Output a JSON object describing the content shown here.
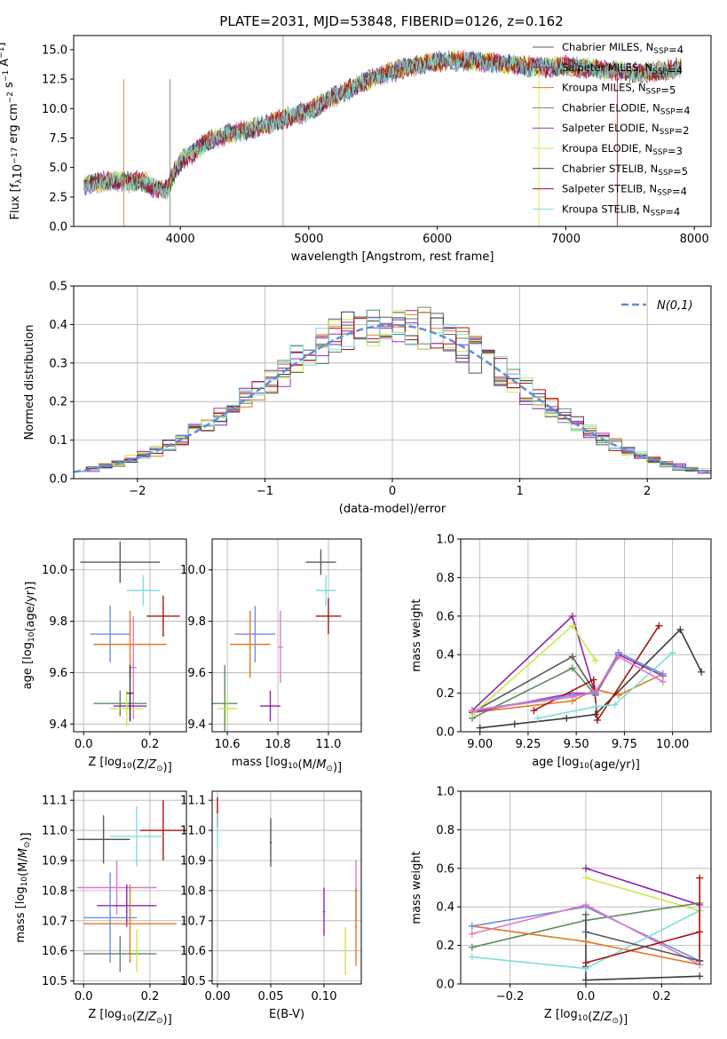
{
  "figure_title": "PLATE=2031, MJD=53848, FIBERID=0126, z=0.162",
  "palette": [
    "#5a5a5a",
    "#8e24aa",
    "#e07b1f",
    "#5f8a5f",
    "#9b30c6",
    "#c9ea4a",
    "#3a3a3a",
    "#aa1111",
    "#7fdede",
    "#6a8fe0",
    "#e377c2",
    "#8c8c8c"
  ],
  "chart_data": [
    {
      "id": "spectrum",
      "type": "line",
      "title": "PLATE=2031, MJD=53848, FIBERID=0126, z=0.162",
      "xlabel": "wavelength [Angstrom, rest frame]",
      "ylabel": "Flux [f_λ10^-17 erg cm^-2 s^-1 A^-1]",
      "xlim": [
        3170,
        8130
      ],
      "ylim": [
        0,
        16.2
      ],
      "xticks": [
        4000,
        5000,
        6000,
        7000,
        8000
      ],
      "yticks": [
        0.0,
        2.5,
        5.0,
        7.5,
        10.0,
        12.5,
        15.0
      ],
      "ytick_labels": [
        "0.0",
        "2.5",
        "5.0",
        "7.5",
        "10.0",
        "12.5",
        "15.0"
      ],
      "grid": false,
      "legend_position": "right",
      "continuum": [
        [
          3250,
          3.5
        ],
        [
          3450,
          3.9
        ],
        [
          3600,
          3.7
        ],
        [
          3700,
          3.9
        ],
        [
          3800,
          3.2
        ],
        [
          3900,
          3.2
        ],
        [
          3950,
          4.5
        ],
        [
          4000,
          5.5
        ],
        [
          4100,
          6.2
        ],
        [
          4200,
          7.2
        ],
        [
          4400,
          7.9
        ],
        [
          4600,
          8.4
        ],
        [
          4800,
          9.1
        ],
        [
          5000,
          9.8
        ],
        [
          5200,
          11.0
        ],
        [
          5400,
          12.1
        ],
        [
          5600,
          13.0
        ],
        [
          5800,
          13.6
        ],
        [
          6000,
          14.0
        ],
        [
          6200,
          14.1
        ],
        [
          6400,
          13.9
        ],
        [
          6600,
          13.7
        ],
        [
          6800,
          13.5
        ],
        [
          7000,
          13.6
        ],
        [
          7200,
          13.4
        ],
        [
          7400,
          13.2
        ],
        [
          7600,
          13.0
        ],
        [
          7800,
          13.3
        ],
        [
          7900,
          13.5
        ]
      ],
      "series": [
        {
          "name": "Chabrier MILES, N_SSP=4",
          "color": "#5a5a5a"
        },
        {
          "name": "Salpeter MILES, N_SSP=4",
          "color": "#8e24aa"
        },
        {
          "name": "Kroupa MILES, N_SSP=5",
          "color": "#e07b1f"
        },
        {
          "name": "Chabrier ELODIE, N_SSP=4",
          "color": "#5f8a5f"
        },
        {
          "name": "Salpeter ELODIE, N_SSP=2",
          "color": "#9b30c6"
        },
        {
          "name": "Kroupa ELODIE, N_SSP=3",
          "color": "#c9ea4a"
        },
        {
          "name": "Chabrier STELIB, N_SSP=5",
          "color": "#3a3a3a"
        },
        {
          "name": "Salpeter STELIB, N_SSP=4",
          "color": "#aa1111"
        },
        {
          "name": "Kroupa STELIB, N_SSP=4",
          "color": "#7fdede"
        }
      ]
    },
    {
      "id": "residuals",
      "type": "histogram",
      "xlabel": "(data-model)/error",
      "ylabel": "Normed distribution",
      "xlim": [
        -2.5,
        2.5
      ],
      "ylim": [
        0,
        0.5
      ],
      "xticks": [
        -2,
        -1,
        0,
        1,
        2
      ],
      "xtick_labels": [
        "−2",
        "−1",
        "0",
        "1",
        "2"
      ],
      "yticks": [
        0.0,
        0.1,
        0.2,
        0.3,
        0.4,
        0.5
      ],
      "ytick_labels": [
        "0.0",
        "0.1",
        "0.2",
        "0.3",
        "0.4",
        "0.5"
      ],
      "grid": true,
      "legend": "N(0,1)",
      "legend_position": "top-right",
      "bin_width": 0.1,
      "colors": [
        "#5a5a5a",
        "#8e24aa",
        "#e07b1f",
        "#5f8a5f",
        "#9b30c6",
        "#c9ea4a",
        "#3a3a3a",
        "#aa1111",
        "#7fdede"
      ],
      "reference_curve": {
        "name": "N(0,1)",
        "mean": 0,
        "sigma": 1,
        "color": "#5b8fd6"
      }
    },
    {
      "id": "age_vs_Z",
      "type": "errorbar",
      "xlabel": "Z [log10(Z/Z⊙)]",
      "ylabel": "age [log10(age/yr)]",
      "xlim": [
        -0.03,
        0.31
      ],
      "ylim": [
        9.37,
        10.12
      ],
      "xticks": [
        0.0,
        0.2
      ],
      "xtick_labels": [
        "0.0",
        "0.2"
      ],
      "yticks": [
        9.4,
        9.6,
        9.8,
        10.0
      ],
      "ytick_labels": [
        "9.4",
        "9.6",
        "9.8",
        "10.0"
      ],
      "grid": true,
      "points": [
        {
          "x": 0.11,
          "y": 10.03,
          "xerr": 0.12,
          "yerr": 0.08,
          "color": "#5a5a5a"
        },
        {
          "x": 0.18,
          "y": 9.92,
          "xerr": 0.05,
          "yerr": 0.06,
          "color": "#7fdede"
        },
        {
          "x": 0.24,
          "y": 9.82,
          "xerr": 0.05,
          "yerr": 0.08,
          "color": "#aa1111"
        },
        {
          "x": 0.08,
          "y": 9.75,
          "xerr": 0.06,
          "yerr": 0.11,
          "color": "#6a8fe0"
        },
        {
          "x": 0.14,
          "y": 9.71,
          "xerr": 0.11,
          "yerr": 0.13,
          "color": "#e07b1f"
        },
        {
          "x": 0.15,
          "y": 9.62,
          "xerr": 0.01,
          "yerr": 0.2,
          "color": "#e377c2"
        },
        {
          "x": 0.11,
          "y": 9.48,
          "xerr": 0.08,
          "yerr": 0.05,
          "color": "#5f8a5f"
        },
        {
          "x": 0.14,
          "y": 9.47,
          "xerr": 0.05,
          "yerr": 0.05,
          "color": "#8e24aa"
        },
        {
          "x": 0.13,
          "y": 9.46,
          "xerr": 0.05,
          "yerr": 0.07,
          "color": "#c9ea4a"
        },
        {
          "x": 0.14,
          "y": 9.52,
          "xerr": 0.01,
          "yerr": 0.11,
          "color": "#3a3a3a"
        }
      ]
    },
    {
      "id": "age_vs_mass",
      "type": "errorbar",
      "xlabel": "mass [log10(M/M⊙)]",
      "ylabel": "",
      "xlim": [
        10.54,
        11.13
      ],
      "ylim": [
        9.37,
        10.12
      ],
      "xticks": [
        10.6,
        10.8,
        11.0
      ],
      "xtick_labels": [
        "10.6",
        "10.8",
        "11.0"
      ],
      "yticks": [
        9.4,
        9.6,
        9.8,
        10.0
      ],
      "ytick_labels": [
        "9.4",
        "9.6",
        "9.8",
        "10.0"
      ],
      "grid": true,
      "points": [
        {
          "x": 10.97,
          "y": 10.03,
          "xerr": 0.06,
          "yerr": 0.05,
          "color": "#5a5a5a"
        },
        {
          "x": 10.99,
          "y": 9.92,
          "xerr": 0.04,
          "yerr": 0.06,
          "color": "#7fdede"
        },
        {
          "x": 11.0,
          "y": 9.82,
          "xerr": 0.05,
          "yerr": 0.07,
          "color": "#aa1111"
        },
        {
          "x": 10.71,
          "y": 9.75,
          "xerr": 0.08,
          "yerr": 0.11,
          "color": "#6a8fe0"
        },
        {
          "x": 10.69,
          "y": 9.71,
          "xerr": 0.08,
          "yerr": 0.13,
          "color": "#e07b1f"
        },
        {
          "x": 10.81,
          "y": 9.7,
          "xerr": 0.01,
          "yerr": 0.14,
          "color": "#e377c2"
        },
        {
          "x": 10.59,
          "y": 9.48,
          "xerr": 0.05,
          "yerr": 0.15,
          "color": "#5f8a5f"
        },
        {
          "x": 10.77,
          "y": 9.47,
          "xerr": 0.04,
          "yerr": 0.06,
          "color": "#8e24aa"
        },
        {
          "x": 10.6,
          "y": 9.46,
          "xerr": 0.04,
          "yerr": 0.06,
          "color": "#c9ea4a"
        }
      ]
    },
    {
      "id": "weight_vs_age",
      "type": "line",
      "xlabel": "age [log10(age/yr)]",
      "ylabel": "mass weight",
      "xlim": [
        8.9,
        10.2
      ],
      "ylim": [
        0,
        1.0
      ],
      "xticks": [
        9.0,
        9.25,
        9.5,
        9.75,
        10.0
      ],
      "xtick_labels": [
        "9.00",
        "9.25",
        "9.50",
        "9.75",
        "10.00"
      ],
      "yticks": [
        0.0,
        0.2,
        0.4,
        0.6,
        0.8,
        1.0
      ],
      "ytick_labels": [
        "0.0",
        "0.2",
        "0.4",
        "0.6",
        "0.8",
        "1.0"
      ],
      "grid": true,
      "series": [
        {
          "color": "#5a5a5a",
          "x": [
            8.96,
            9.48,
            9.6,
            9.72
          ],
          "y": [
            0.1,
            0.39,
            0.2,
            0.39
          ]
        },
        {
          "color": "#8e24aa",
          "x": [
            8.96,
            9.48,
            9.6,
            9.72,
            9.95
          ],
          "y": [
            0.11,
            0.6,
            0.19,
            0.4,
            0.29
          ]
        },
        {
          "color": "#e07b1f",
          "x": [
            8.96,
            9.48,
            9.6,
            9.72,
            9.95
          ],
          "y": [
            0.1,
            0.16,
            0.22,
            0.19,
            0.3
          ]
        },
        {
          "color": "#5f8a5f",
          "x": [
            8.96,
            9.48,
            9.6,
            9.72
          ],
          "y": [
            0.07,
            0.33,
            0.19,
            0.41
          ]
        },
        {
          "color": "#9b30c6",
          "x": [
            8.96,
            9.48,
            9.6,
            9.72
          ],
          "y": [
            0.1,
            0.2,
            0.2,
            0.41
          ]
        },
        {
          "color": "#c9ea4a",
          "x": [
            8.96,
            9.48,
            9.6
          ],
          "y": [
            0.09,
            0.55,
            0.37
          ]
        },
        {
          "color": "#3a3a3a",
          "x": [
            9.0,
            9.18,
            9.45,
            9.6,
            10.04,
            10.15
          ],
          "y": [
            0.02,
            0.04,
            0.07,
            0.09,
            0.53,
            0.31
          ]
        },
        {
          "color": "#aa1111",
          "x": [
            9.28,
            9.59,
            9.61,
            9.93
          ],
          "y": [
            0.11,
            0.27,
            0.06,
            0.55
          ]
        },
        {
          "color": "#7fdede",
          "x": [
            9.3,
            9.6,
            9.7,
            10.0
          ],
          "y": [
            0.07,
            0.13,
            0.14,
            0.41
          ]
        },
        {
          "color": "#6a8fe0",
          "x": [
            8.96,
            9.48,
            9.6,
            9.72,
            9.95
          ],
          "y": [
            0.11,
            0.19,
            0.2,
            0.41,
            0.3
          ]
        },
        {
          "color": "#e377c2",
          "x": [
            8.96,
            9.48,
            9.6,
            9.72,
            9.95
          ],
          "y": [
            0.11,
            0.18,
            0.21,
            0.39,
            0.26
          ]
        }
      ]
    },
    {
      "id": "mass_vs_Z",
      "type": "errorbar",
      "xlabel": "Z [log10(Z/Z⊙)]",
      "ylabel": "mass [log10(M/M⊙)]",
      "xlim": [
        -0.03,
        0.31
      ],
      "ylim": [
        10.49,
        11.13
      ],
      "xticks": [
        0.0,
        0.2
      ],
      "xtick_labels": [
        "0.0",
        "0.2"
      ],
      "yticks": [
        10.5,
        10.6,
        10.7,
        10.8,
        10.9,
        11.0,
        11.1
      ],
      "ytick_labels": [
        "10.5",
        "10.6",
        "10.7",
        "10.8",
        "10.9",
        "11.0",
        "11.1"
      ],
      "grid": true,
      "points": [
        {
          "x": 0.06,
          "y": 10.97,
          "xerr": 0.08,
          "yerr": 0.08,
          "color": "#5a5a5a"
        },
        {
          "x": 0.24,
          "y": 11.0,
          "xerr": 0.07,
          "yerr": 0.1,
          "color": "#aa1111"
        },
        {
          "x": 0.16,
          "y": 10.98,
          "xerr": 0.08,
          "yerr": 0.1,
          "color": "#7fdede"
        },
        {
          "x": 0.1,
          "y": 10.81,
          "xerr": 0.12,
          "yerr": 0.09,
          "color": "#e377c2"
        },
        {
          "x": 0.13,
          "y": 10.75,
          "xerr": 0.09,
          "yerr": 0.07,
          "color": "#8e24aa"
        },
        {
          "x": 0.08,
          "y": 10.71,
          "xerr": 0.08,
          "yerr": 0.15,
          "color": "#6a8fe0"
        },
        {
          "x": 0.14,
          "y": 10.69,
          "xerr": 0.14,
          "yerr": 0.13,
          "color": "#e07b1f"
        },
        {
          "x": 0.11,
          "y": 10.59,
          "xerr": 0.11,
          "yerr": 0.06,
          "color": "#5f8a5f"
        },
        {
          "x": 0.16,
          "y": 10.6,
          "xerr": 0.01,
          "yerr": 0.07,
          "color": "#c9ea4a"
        }
      ]
    },
    {
      "id": "mass_vs_ebv",
      "type": "errorbar",
      "xlabel": "E(B-V)",
      "ylabel": "",
      "xlim": [
        -0.005,
        0.135
      ],
      "ylim": [
        10.49,
        11.13
      ],
      "xticks": [
        0.0,
        0.05,
        0.1
      ],
      "xtick_labels": [
        "0.00",
        "0.05",
        "0.10"
      ],
      "yticks": [
        10.5,
        10.6,
        10.7,
        10.8,
        10.9,
        11.0,
        11.1
      ],
      "ytick_labels": [
        "10.5",
        "10.6",
        "10.7",
        "10.8",
        "10.9",
        "11.0",
        "11.1"
      ],
      "grid": true,
      "points": [
        {
          "x": 0.0,
          "y": 11.06,
          "xerr": 0.001,
          "yerr": 0.05,
          "color": "#aa1111"
        },
        {
          "x": 0.0,
          "y": 11.0,
          "xerr": 0.001,
          "yerr": 0.06,
          "color": "#7fdede"
        },
        {
          "x": 0.05,
          "y": 10.96,
          "xerr": 0.001,
          "yerr": 0.08,
          "color": "#5a5a5a"
        },
        {
          "x": 0.1,
          "y": 10.73,
          "xerr": 0.001,
          "yerr": 0.08,
          "color": "#8e24aa"
        },
        {
          "x": 0.12,
          "y": 10.6,
          "xerr": 0.001,
          "yerr": 0.08,
          "color": "#c9ea4a"
        },
        {
          "x": 0.13,
          "y": 10.8,
          "xerr": 0.001,
          "yerr": 0.1,
          "color": "#e377c2"
        },
        {
          "x": 0.13,
          "y": 10.68,
          "xerr": 0.001,
          "yerr": 0.13,
          "color": "#e07b1f"
        }
      ]
    },
    {
      "id": "weight_vs_Z",
      "type": "line",
      "xlabel": "Z [log10(Z/Z⊙)]",
      "ylabel": "mass weight",
      "xlim": [
        -0.33,
        0.33
      ],
      "ylim": [
        0,
        1.0
      ],
      "xticks": [
        -0.2,
        0.0,
        0.2
      ],
      "xtick_labels": [
        "−0.2",
        "0.0",
        "0.2"
      ],
      "yticks": [
        0.0,
        0.2,
        0.4,
        0.6,
        0.8,
        1.0
      ],
      "ytick_labels": [
        "0.0",
        "0.2",
        "0.4",
        "0.6",
        "0.8",
        "1.0"
      ],
      "grid": true,
      "series": [
        {
          "color": "#3a3a3a",
          "x": [
            0.0,
            0.0,
            0.0,
            0.3
          ],
          "y": [
            0.33,
            0.09,
            0.02,
            0.04
          ]
        },
        {
          "color": "#8e24aa",
          "x": [
            0.0,
            0.3,
            0.3
          ],
          "y": [
            0.6,
            0.41,
            0.12
          ]
        },
        {
          "color": "#c9ea4a",
          "x": [
            0.0,
            0.3,
            0.3
          ],
          "y": [
            0.55,
            0.38,
            0.1
          ]
        },
        {
          "color": "#5f8a5f",
          "x": [
            -0.3,
            0.0,
            0.3
          ],
          "y": [
            0.19,
            0.33,
            0.42
          ]
        },
        {
          "color": "#e07b1f",
          "x": [
            -0.3,
            0.0,
            0.3
          ],
          "y": [
            0.3,
            0.22,
            0.1
          ]
        },
        {
          "color": "#6a8fe0",
          "x": [
            -0.3,
            0.0,
            0.3
          ],
          "y": [
            0.3,
            0.4,
            0.12
          ]
        },
        {
          "color": "#e377c2",
          "x": [
            -0.3,
            0.0,
            0.3
          ],
          "y": [
            0.26,
            0.41,
            0.1
          ]
        },
        {
          "color": "#7fdede",
          "x": [
            -0.3,
            0.0,
            0.3
          ],
          "y": [
            0.14,
            0.08,
            0.38
          ]
        },
        {
          "color": "#aa1111",
          "x": [
            0.0,
            0.3,
            0.3,
            0.3
          ],
          "y": [
            0.11,
            0.27,
            0.55,
            0.12
          ]
        },
        {
          "color": "#5a5a5a",
          "x": [
            0.0,
            0.0,
            0.3
          ],
          "y": [
            0.36,
            0.27,
            0.12
          ]
        }
      ]
    }
  ]
}
